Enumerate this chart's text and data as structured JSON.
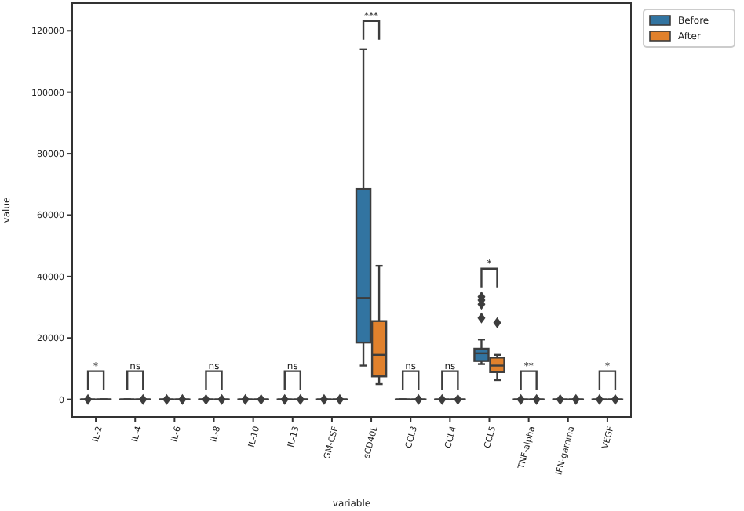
{
  "chart_data": {
    "type": "box",
    "xlabel": "variable",
    "ylabel": "value",
    "categories": [
      "IL-2",
      "IL-4",
      "IL-6",
      "IL-8",
      "IL-10",
      "IL-13",
      "GM-CSF",
      "sCD40L",
      "CCL3",
      "CCL4",
      "CCL5",
      "TNF-alpha",
      "IFN-gamma",
      "VEGF"
    ],
    "ylim": [
      -5700,
      129000
    ],
    "yticks": [
      0,
      20000,
      40000,
      60000,
      80000,
      100000,
      120000
    ],
    "legend": "top right",
    "legend_title": null,
    "series": [
      {
        "name": "Before",
        "color": "#3274a1",
        "boxes": [
          {
            "low": 0,
            "q1": 0,
            "median": 0,
            "q3": 0,
            "high": 0,
            "outliers": [
              0
            ]
          },
          {
            "low": 0,
            "q1": 0,
            "median": 0,
            "q3": 0,
            "high": 0
          },
          {
            "low": 0,
            "q1": 0,
            "median": 0,
            "q3": 0,
            "high": 0,
            "outliers": [
              0
            ]
          },
          {
            "low": 0,
            "q1": 0,
            "median": 0,
            "q3": 0,
            "high": 0,
            "outliers": [
              0
            ]
          },
          {
            "low": 0,
            "q1": 0,
            "median": 0,
            "q3": 0,
            "high": 0,
            "outliers": [
              0
            ]
          },
          {
            "low": 0,
            "q1": 0,
            "median": 0,
            "q3": 0,
            "high": 0,
            "outliers": [
              0
            ]
          },
          {
            "low": 0,
            "q1": 0,
            "median": 0,
            "q3": 0,
            "high": 0,
            "outliers": [
              0
            ]
          },
          {
            "low": 11000,
            "q1": 18500,
            "median": 33000,
            "q3": 68500,
            "high": 114000
          },
          {
            "low": 0,
            "q1": 0,
            "median": 0,
            "q3": 0,
            "high": 0
          },
          {
            "low": 0,
            "q1": 0,
            "median": 0,
            "q3": 0,
            "high": 0,
            "outliers": [
              0
            ]
          },
          {
            "low": 11500,
            "q1": 12500,
            "median": 15000,
            "q3": 16500,
            "high": 19500,
            "outliers": [
              26500,
              31000,
              32300,
              33400
            ]
          },
          {
            "low": 0,
            "q1": 0,
            "median": 0,
            "q3": 0,
            "high": 0,
            "outliers": [
              0
            ]
          },
          {
            "low": 0,
            "q1": 0,
            "median": 0,
            "q3": 0,
            "high": 0,
            "outliers": [
              0
            ]
          },
          {
            "low": 0,
            "q1": 0,
            "median": 0,
            "q3": 0,
            "high": 0,
            "outliers": [
              0
            ]
          }
        ]
      },
      {
        "name": "After",
        "color": "#e1812c",
        "boxes": [
          {
            "low": 0,
            "q1": 0,
            "median": 0,
            "q3": 0,
            "high": 0
          },
          {
            "low": 0,
            "q1": 0,
            "median": 0,
            "q3": 0,
            "high": 0,
            "outliers": [
              0
            ]
          },
          {
            "low": 0,
            "q1": 0,
            "median": 0,
            "q3": 0,
            "high": 0,
            "outliers": [
              0
            ]
          },
          {
            "low": 0,
            "q1": 0,
            "median": 0,
            "q3": 0,
            "high": 0,
            "outliers": [
              0
            ]
          },
          {
            "low": 0,
            "q1": 0,
            "median": 0,
            "q3": 0,
            "high": 0,
            "outliers": [
              0
            ]
          },
          {
            "low": 0,
            "q1": 0,
            "median": 0,
            "q3": 0,
            "high": 0,
            "outliers": [
              0
            ]
          },
          {
            "low": 0,
            "q1": 0,
            "median": 0,
            "q3": 0,
            "high": 0,
            "outliers": [
              0
            ]
          },
          {
            "low": 5000,
            "q1": 7500,
            "median": 14500,
            "q3": 25500,
            "high": 43500
          },
          {
            "low": 0,
            "q1": 0,
            "median": 0,
            "q3": 0,
            "high": 0,
            "outliers": [
              0
            ]
          },
          {
            "low": 0,
            "q1": 0,
            "median": 0,
            "q3": 0,
            "high": 0,
            "outliers": [
              0
            ]
          },
          {
            "low": 6300,
            "q1": 8900,
            "median": 11000,
            "q3": 13600,
            "high": 14500,
            "outliers": [
              25000
            ]
          },
          {
            "low": 0,
            "q1": 0,
            "median": 0,
            "q3": 0,
            "high": 0,
            "outliers": [
              0
            ]
          },
          {
            "low": 0,
            "q1": 0,
            "median": 0,
            "q3": 0,
            "high": 0,
            "outliers": [
              0
            ]
          },
          {
            "low": 0,
            "q1": 0,
            "median": 0,
            "q3": 0,
            "high": 0,
            "outliers": [
              0
            ]
          }
        ]
      }
    ],
    "annotations": [
      "*",
      "ns",
      null,
      "ns",
      null,
      "ns",
      null,
      "***",
      "ns",
      "ns",
      "*",
      "**",
      null,
      "*"
    ]
  }
}
